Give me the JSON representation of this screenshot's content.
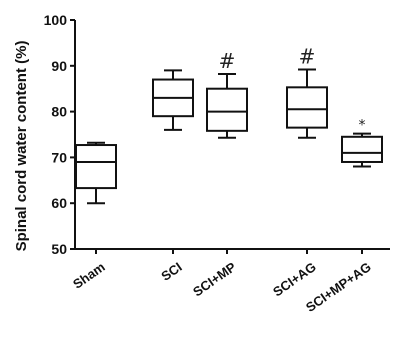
{
  "chart_data": {
    "type": "boxplot",
    "ylabel": "Spinal cord water content (%)",
    "xlabel": "",
    "ylim": [
      50,
      100
    ],
    "yticks": [
      50,
      60,
      70,
      80,
      90,
      100
    ],
    "categories": [
      "Sham",
      "SCI",
      "SCI+MP",
      "SCI+AG",
      "SCI+MP+AG"
    ],
    "boxes": [
      {
        "category": "Sham",
        "min": 60.0,
        "q1": 63.3,
        "median": 69.0,
        "q3": 72.7,
        "max": 73.2,
        "annotation": ""
      },
      {
        "category": "SCI",
        "min": 76.0,
        "q1": 79.0,
        "median": 83.0,
        "q3": 87.0,
        "max": 89.0,
        "annotation": ""
      },
      {
        "category": "SCI+MP",
        "min": 74.3,
        "q1": 75.8,
        "median": 80.0,
        "q3": 85.0,
        "max": 88.2,
        "annotation": "#"
      },
      {
        "category": "SCI+AG",
        "min": 74.3,
        "q1": 76.5,
        "median": 80.5,
        "q3": 85.3,
        "max": 89.2,
        "annotation": "#"
      },
      {
        "category": "SCI+MP+AG",
        "min": 68.0,
        "q1": 69.0,
        "median": 71.0,
        "q3": 74.5,
        "max": 75.2,
        "annotation": "*"
      }
    ],
    "colors": {
      "box_fill": "#ffffff",
      "stroke": "#111111"
    }
  }
}
